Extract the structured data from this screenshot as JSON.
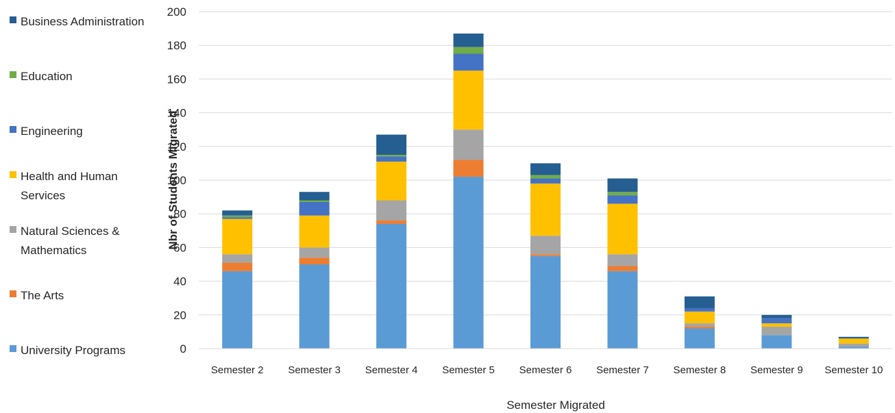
{
  "chart_data": {
    "type": "bar",
    "stacked": true,
    "title": "",
    "xlabel": "Semester Migrated",
    "ylabel": "Nbr of Students Migrated",
    "ylim": [
      0,
      200
    ],
    "yticks": [
      0,
      20,
      40,
      60,
      80,
      100,
      120,
      140,
      160,
      180,
      200
    ],
    "grid": true,
    "legend_position": "left",
    "categories": [
      "Semester 2",
      "Semester 3",
      "Semester 4",
      "Semester 5",
      "Semester 6",
      "Semester 7",
      "Semester 8",
      "Semester 9",
      "Semester 10"
    ],
    "series": [
      {
        "name": "University Programs",
        "color": "#5B9BD5",
        "values": [
          46,
          50,
          74,
          102,
          55,
          46,
          12,
          8,
          1
        ]
      },
      {
        "name": "The Arts",
        "color": "#ED7D31",
        "values": [
          5,
          4,
          2,
          10,
          1,
          3,
          1,
          0,
          0
        ]
      },
      {
        "name": "Natural Sciences & Mathematics",
        "color": "#A5A5A5",
        "values": [
          5,
          6,
          12,
          18,
          11,
          7,
          2,
          5,
          2
        ]
      },
      {
        "name": "Health and Human Services",
        "color": "#FFC000",
        "values": [
          21,
          19,
          23,
          35,
          31,
          30,
          7,
          2,
          3
        ]
      },
      {
        "name": "Engineering",
        "color": "#4472C4",
        "values": [
          1,
          8,
          3,
          10,
          3,
          5,
          2,
          3,
          0
        ]
      },
      {
        "name": "Education",
        "color": "#70AD47",
        "values": [
          1,
          1,
          1,
          4,
          2,
          2,
          0,
          0,
          0
        ]
      },
      {
        "name": "Business Administration",
        "color": "#255E91",
        "values": [
          3,
          5,
          12,
          8,
          7,
          8,
          7,
          2,
          1
        ]
      }
    ]
  }
}
